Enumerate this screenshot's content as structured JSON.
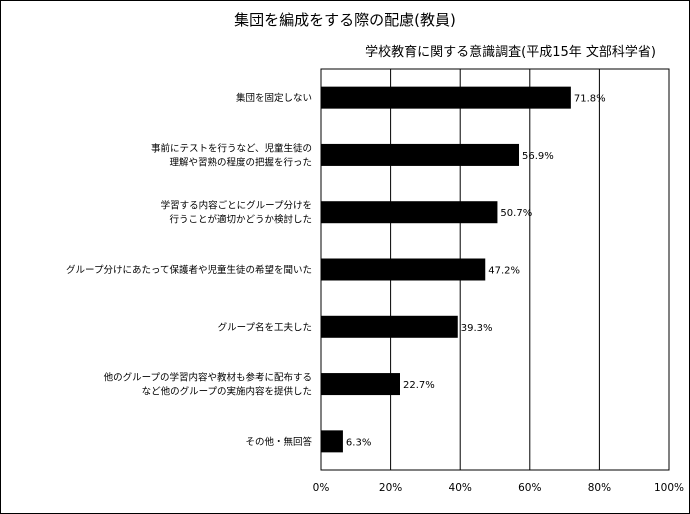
{
  "chart_data": {
    "type": "bar",
    "orientation": "horizontal",
    "title": "集団を編成をする際の配慮(教員)",
    "subtitle": "学校教育に関する意識調査(平成15年 文部科学省)",
    "categories": [
      [
        "集団を固定しない"
      ],
      [
        "事前にテストを行うなど、児童生徒の",
        "理解や習熟の程度の把握を行った"
      ],
      [
        "学習する内容ごとにグループ分けを",
        "行うことが適切かどうか検討した"
      ],
      [
        "グループ分けにあたって保護者や児童生徒の希望を聞いた"
      ],
      [
        "グループ名を工夫した"
      ],
      [
        "他のグループの学習内容や教材も参考に配布する",
        "など他のグループの実施内容を提供した"
      ],
      [
        "その他・無回答"
      ]
    ],
    "values": [
      71.8,
      56.9,
      50.7,
      47.2,
      39.3,
      22.7,
      6.3
    ],
    "value_labels": [
      "71.8%",
      "56.9%",
      "50.7%",
      "47.2%",
      "39.3%",
      "22.7%",
      "6.3%"
    ],
    "xlim": [
      0,
      100
    ],
    "x_ticks": [
      "0%",
      "20%",
      "40%",
      "60%",
      "80%",
      "100%"
    ],
    "grid": "vertical",
    "bar_color": "#000000"
  }
}
